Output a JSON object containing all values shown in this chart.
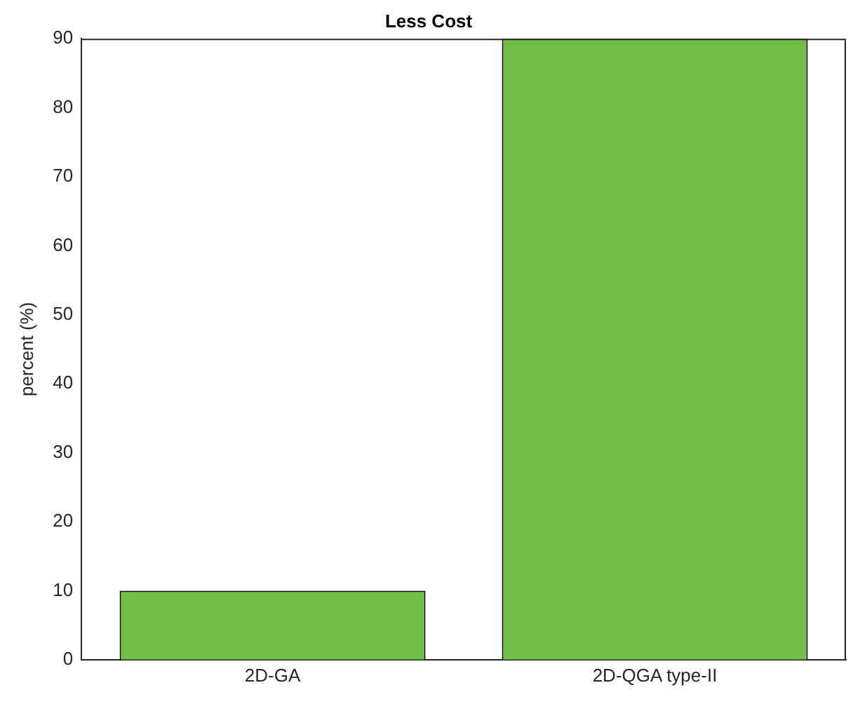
{
  "chart_data": {
    "type": "bar",
    "title": "Less Cost",
    "ylabel": "percent (%)",
    "categories": [
      "2D-GA",
      "2D-QGA type-II"
    ],
    "values": [
      10,
      90
    ],
    "color": "#70bf44",
    "ylim": [
      0,
      90
    ],
    "yticks": [
      0,
      10,
      20,
      30,
      40,
      50,
      60,
      70,
      80,
      90
    ],
    "grid": false,
    "legend": false
  }
}
